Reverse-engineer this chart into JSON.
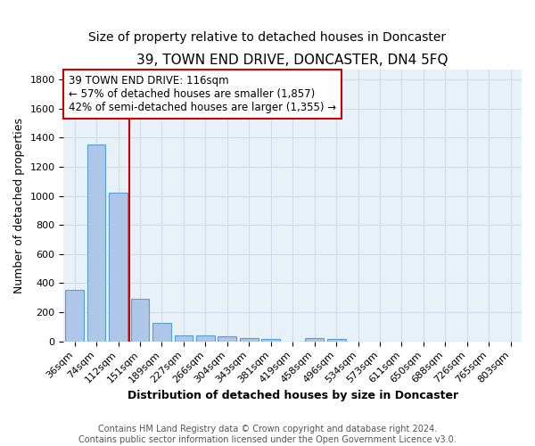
{
  "title": "39, TOWN END DRIVE, DONCASTER, DN4 5FQ",
  "subtitle": "Size of property relative to detached houses in Doncaster",
  "xlabel": "Distribution of detached houses by size in Doncaster",
  "ylabel": "Number of detached properties",
  "footnote1": "Contains HM Land Registry data © Crown copyright and database right 2024.",
  "footnote2": "Contains public sector information licensed under the Open Government Licence v3.0.",
  "categories": [
    "36sqm",
    "74sqm",
    "112sqm",
    "151sqm",
    "189sqm",
    "227sqm",
    "266sqm",
    "304sqm",
    "343sqm",
    "381sqm",
    "419sqm",
    "458sqm",
    "496sqm",
    "534sqm",
    "573sqm",
    "611sqm",
    "650sqm",
    "688sqm",
    "726sqm",
    "765sqm",
    "803sqm"
  ],
  "values": [
    355,
    1355,
    1020,
    295,
    130,
    42,
    40,
    35,
    22,
    18,
    0,
    22,
    18,
    0,
    0,
    0,
    0,
    0,
    0,
    0,
    0
  ],
  "bar_color": "#aec6e8",
  "bar_edge_color": "#5a9fd4",
  "background_color": "#e8f0f8",
  "grid_color": "#d0dce8",
  "vline_x": 2.5,
  "vline_color": "#cc0000",
  "annotation_text": "39 TOWN END DRIVE: 116sqm\n← 57% of detached houses are smaller (1,857)\n42% of semi-detached houses are larger (1,355) →",
  "annotation_box_color": "#ffffff",
  "annotation_box_edge_color": "#cc0000",
  "ylim": [
    0,
    1870
  ],
  "yticks": [
    0,
    200,
    400,
    600,
    800,
    1000,
    1200,
    1400,
    1600,
    1800
  ],
  "title_fontsize": 11,
  "subtitle_fontsize": 10,
  "ylabel_fontsize": 9,
  "xlabel_fontsize": 9,
  "tick_fontsize": 8,
  "annotation_fontsize": 8.5,
  "footnote_fontsize": 7
}
